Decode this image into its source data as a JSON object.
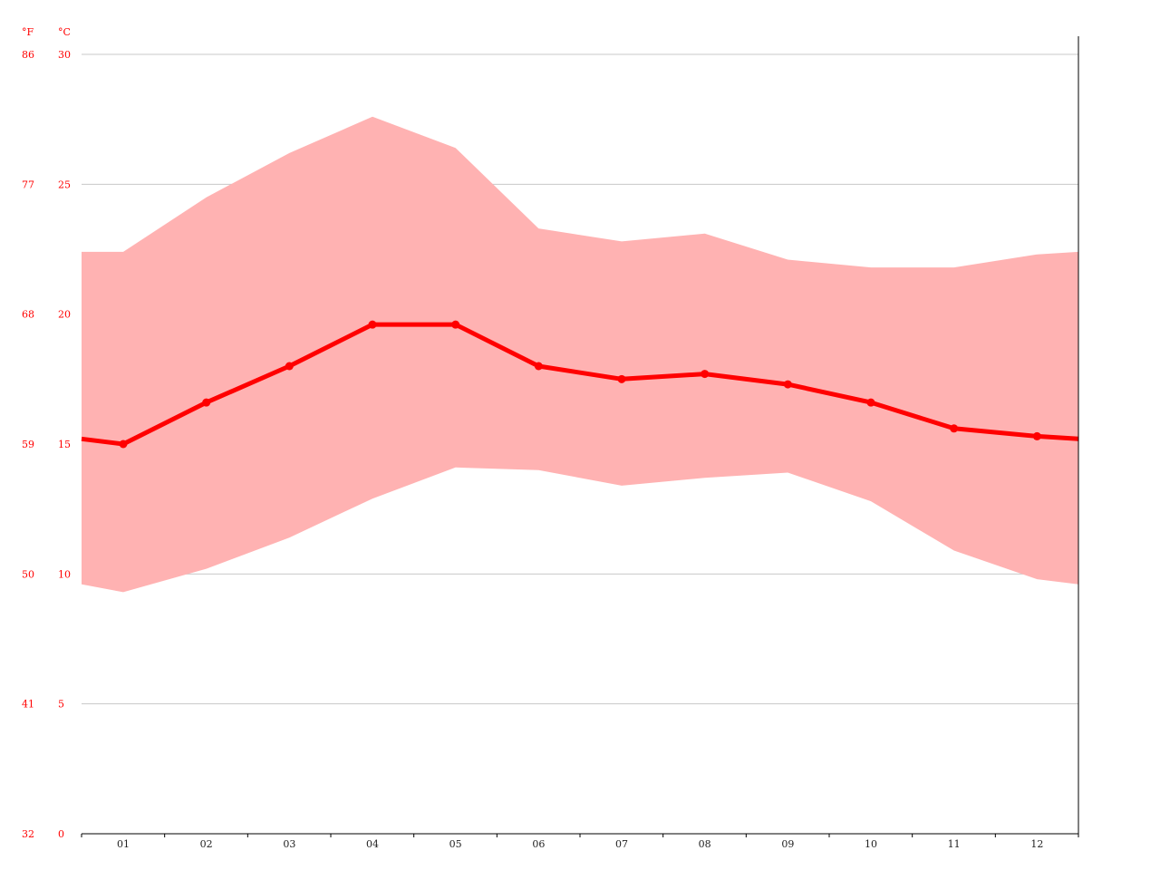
{
  "chart_data": {
    "type": "line",
    "categories": [
      "01",
      "02",
      "03",
      "04",
      "05",
      "06",
      "07",
      "08",
      "09",
      "10",
      "11",
      "12"
    ],
    "series": [
      {
        "role": "mean",
        "style": "line-with-markers",
        "values": [
          15.0,
          16.6,
          18.0,
          19.6,
          19.6,
          18.0,
          17.5,
          17.7,
          17.3,
          16.6,
          15.6,
          15.3
        ]
      },
      {
        "role": "band",
        "style": "area-range",
        "max": [
          22.4,
          24.5,
          26.2,
          27.6,
          26.4,
          23.3,
          22.8,
          23.1,
          22.1,
          21.8,
          21.8,
          22.3
        ],
        "min": [
          9.3,
          10.2,
          11.4,
          12.9,
          14.1,
          14.0,
          13.4,
          13.7,
          13.9,
          12.8,
          10.9,
          9.8
        ]
      }
    ],
    "x_edge_values": {
      "left": {
        "mean": 15.2,
        "max": 22.4,
        "min": 9.6
      },
      "right": {
        "mean": 15.2,
        "max": 22.4,
        "min": 9.6
      }
    },
    "y_units": {
      "primary": "°C",
      "secondary": "°F"
    },
    "y_ticks_c": [
      "30",
      "25",
      "20",
      "15",
      "10",
      "5",
      "0"
    ],
    "y_ticks_f": [
      "86",
      "77",
      "68",
      "59",
      "50",
      "41",
      "32"
    ],
    "ylim": [
      0,
      30
    ],
    "grid": true,
    "legend": "none",
    "colors": {
      "line": "#ff0000",
      "band": "#ffb2b2",
      "tick_text": "#ff0000",
      "grid": "#c8c8c8",
      "axis": "#000000",
      "x_tick_text": "#222222"
    }
  }
}
